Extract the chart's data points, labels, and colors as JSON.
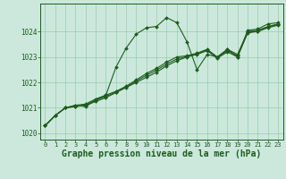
{
  "title": "Graphe pression niveau de la mer (hPa)",
  "bg_color": "#cce8dd",
  "line_color": "#1e5c1e",
  "grid_color": "#99ccaa",
  "xlim": [
    -0.5,
    23.5
  ],
  "ylim": [
    1019.75,
    1025.1
  ],
  "yticks": [
    1020,
    1021,
    1022,
    1023,
    1024
  ],
  "xticks": [
    0,
    1,
    2,
    3,
    4,
    5,
    6,
    7,
    8,
    9,
    10,
    11,
    12,
    13,
    14,
    15,
    16,
    17,
    18,
    19,
    20,
    21,
    22,
    23
  ],
  "series": [
    [
      1020.3,
      1020.7,
      1021.0,
      1021.1,
      1021.05,
      1021.3,
      1021.5,
      1022.6,
      1023.35,
      1023.9,
      1024.15,
      1024.2,
      1024.55,
      1024.35,
      1023.6,
      1022.5,
      1023.1,
      1023.0,
      1023.3,
      1023.0,
      1024.05,
      1024.1,
      1024.3,
      1024.35
    ],
    [
      1020.3,
      1020.7,
      1021.0,
      1021.1,
      1021.15,
      1021.35,
      1021.5,
      1021.65,
      1021.85,
      1022.1,
      1022.35,
      1022.55,
      1022.8,
      1023.0,
      1023.05,
      1023.15,
      1023.3,
      1023.0,
      1023.3,
      1023.1,
      1024.0,
      1024.05,
      1024.2,
      1024.3
    ],
    [
      1020.3,
      1020.7,
      1021.0,
      1021.05,
      1021.1,
      1021.25,
      1021.4,
      1021.6,
      1021.8,
      1022.0,
      1022.2,
      1022.4,
      1022.65,
      1022.85,
      1023.0,
      1023.1,
      1023.25,
      1022.95,
      1023.2,
      1023.0,
      1023.95,
      1024.0,
      1024.15,
      1024.25
    ],
    [
      1020.3,
      1020.7,
      1021.0,
      1021.05,
      1021.12,
      1021.3,
      1021.45,
      1021.62,
      1021.82,
      1022.05,
      1022.28,
      1022.48,
      1022.72,
      1022.92,
      1023.02,
      1023.12,
      1023.28,
      1022.98,
      1023.25,
      1023.05,
      1023.97,
      1024.02,
      1024.18,
      1024.28
    ]
  ],
  "title_fontsize": 7,
  "tick_fontsize": 5,
  "xlabel_fontsize": 6
}
